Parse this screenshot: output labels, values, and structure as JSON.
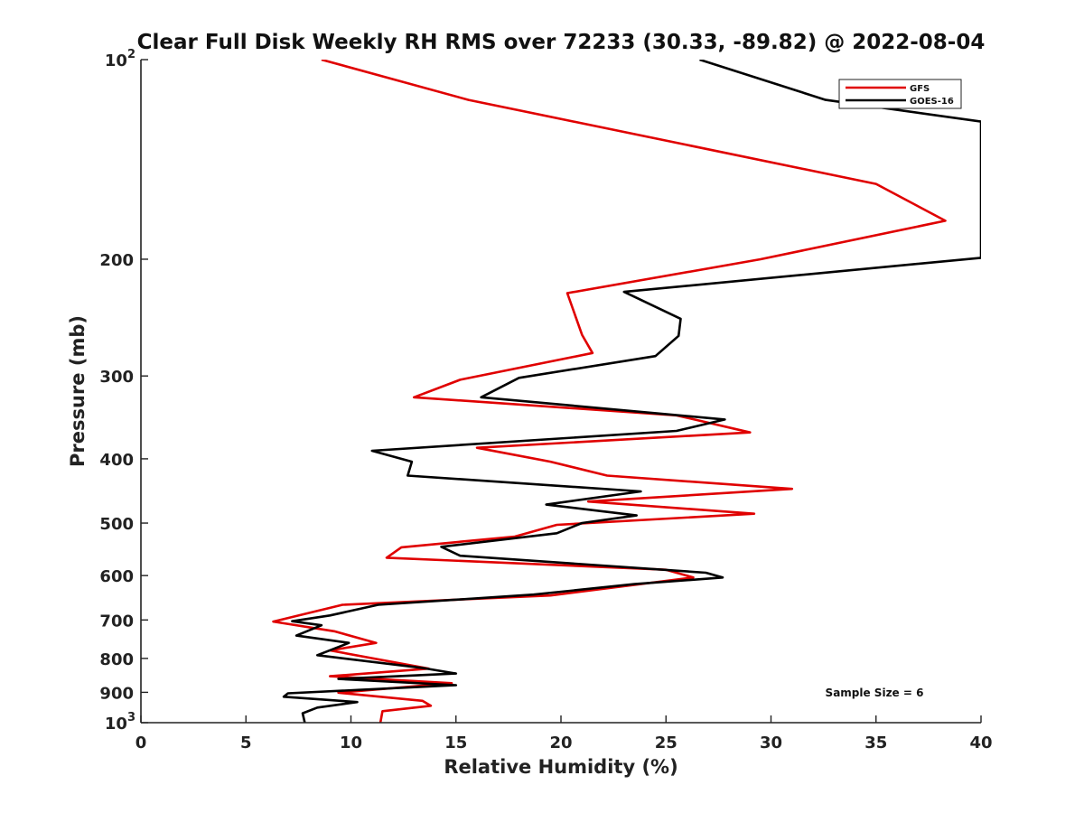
{
  "chart_data": {
    "type": "line",
    "title": "Clear Full Disk Weekly RH RMS over 72233 (30.33, -89.82) @ 2022-08-04",
    "xlabel": "Relative Humidity (%)",
    "ylabel": "Pressure (mb)",
    "xlim": [
      0,
      40
    ],
    "ylim": [
      100,
      1000
    ],
    "yscale": "log",
    "yreversed": true,
    "x_ticks": [
      "0",
      "5",
      "10",
      "15",
      "20",
      "25",
      "30",
      "35",
      "40"
    ],
    "y_ticks": [
      {
        "value": 100,
        "label": "10",
        "sup": "2"
      },
      {
        "value": 200,
        "label": "200",
        "sup": ""
      },
      {
        "value": 300,
        "label": "300",
        "sup": ""
      },
      {
        "value": 400,
        "label": "400",
        "sup": ""
      },
      {
        "value": 500,
        "label": "500",
        "sup": ""
      },
      {
        "value": 600,
        "label": "600",
        "sup": ""
      },
      {
        "value": 700,
        "label": "700",
        "sup": ""
      },
      {
        "value": 800,
        "label": "800",
        "sup": ""
      },
      {
        "value": 900,
        "label": "900",
        "sup": ""
      },
      {
        "value": 1000,
        "label": "10",
        "sup": "3"
      }
    ],
    "legend_position": "top-right",
    "annotation": "Sample Size = 6",
    "series": [
      {
        "name": "GFS",
        "color": "#e00000",
        "points": [
          [
            8.6,
            100
          ],
          [
            15.6,
            115
          ],
          [
            35.0,
            154
          ],
          [
            38.3,
            175
          ],
          [
            29.5,
            200
          ],
          [
            20.3,
            225
          ],
          [
            21.0,
            260
          ],
          [
            21.5,
            277
          ],
          [
            15.2,
            304
          ],
          [
            13.0,
            323
          ],
          [
            25.5,
            344
          ],
          [
            29.0,
            365
          ],
          [
            16.0,
            385
          ],
          [
            19.5,
            404
          ],
          [
            22.2,
            424
          ],
          [
            31.0,
            444
          ],
          [
            21.3,
            464
          ],
          [
            29.2,
            484
          ],
          [
            19.8,
            503
          ],
          [
            17.8,
            524
          ],
          [
            12.4,
            544
          ],
          [
            11.7,
            564
          ],
          [
            25.0,
            588
          ],
          [
            26.3,
            604
          ],
          [
            19.5,
            643
          ],
          [
            9.6,
            664
          ],
          [
            6.3,
            704
          ],
          [
            9.2,
            728
          ],
          [
            11.2,
            758
          ],
          [
            9.0,
            778
          ],
          [
            13.7,
            829
          ],
          [
            9.0,
            851
          ],
          [
            14.8,
            872
          ],
          [
            9.4,
            901
          ],
          [
            13.4,
            927
          ],
          [
            13.8,
            943
          ],
          [
            11.5,
            961
          ],
          [
            11.4,
            1000
          ]
        ]
      },
      {
        "name": "GOES-16",
        "color": "#000000",
        "points": [
          [
            26.6,
            100
          ],
          [
            32.6,
            115
          ],
          [
            40.0,
            124
          ],
          [
            40.0,
            199
          ],
          [
            23.0,
            224
          ],
          [
            25.7,
            246
          ],
          [
            25.6,
            261
          ],
          [
            24.5,
            280
          ],
          [
            18.0,
            302
          ],
          [
            16.2,
            323
          ],
          [
            27.8,
            349
          ],
          [
            25.5,
            363
          ],
          [
            11.0,
            389
          ],
          [
            12.9,
            404
          ],
          [
            12.7,
            424
          ],
          [
            23.8,
            448
          ],
          [
            19.3,
            469
          ],
          [
            23.6,
            487
          ],
          [
            21.0,
            500
          ],
          [
            19.8,
            518
          ],
          [
            14.3,
            543
          ],
          [
            15.2,
            560
          ],
          [
            26.9,
            594
          ],
          [
            27.7,
            604
          ],
          [
            23.5,
            618
          ],
          [
            18.7,
            641
          ],
          [
            11.3,
            664
          ],
          [
            9.0,
            689
          ],
          [
            7.2,
            703
          ],
          [
            8.6,
            713
          ],
          [
            7.4,
            739
          ],
          [
            9.9,
            758
          ],
          [
            8.4,
            791
          ],
          [
            13.4,
            827
          ],
          [
            15.0,
            843
          ],
          [
            9.4,
            859
          ],
          [
            15.0,
            878
          ],
          [
            7.0,
            903
          ],
          [
            6.8,
            914
          ],
          [
            10.3,
            931
          ],
          [
            8.4,
            949
          ],
          [
            7.7,
            968
          ],
          [
            7.8,
            1000
          ]
        ]
      }
    ]
  }
}
